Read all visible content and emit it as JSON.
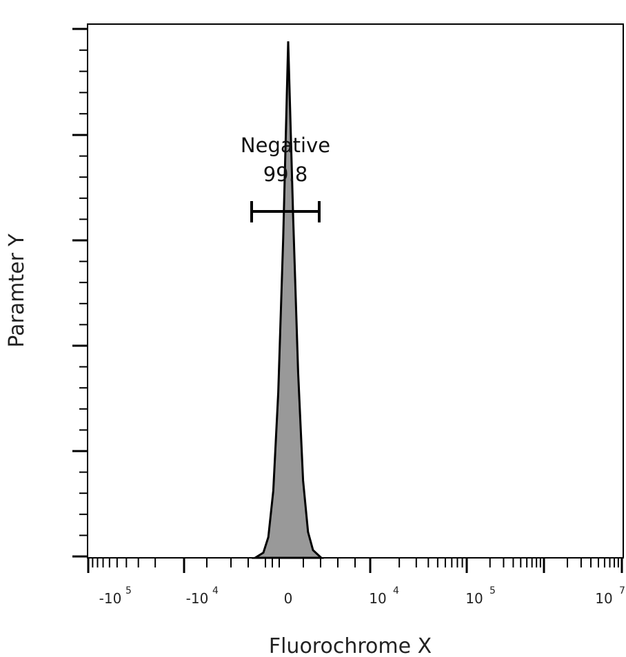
{
  "chart_data": {
    "type": "area",
    "title": "",
    "xlabel": "Fluorochrome X",
    "ylabel": "Paramter Y",
    "x_scale": "biexponential",
    "x_ticks": [
      {
        "label": "-10",
        "exp": "5"
      },
      {
        "label": "-10",
        "exp": "4"
      },
      {
        "label": "0",
        "exp": ""
      },
      {
        "label": "10",
        "exp": "4"
      },
      {
        "label": "10",
        "exp": "5"
      },
      {
        "label": "10",
        "exp": "7"
      }
    ],
    "y_tick_labels": [],
    "grid": false,
    "series": [
      {
        "fill_color": "#999999",
        "stroke_color": "#000000",
        "points": [
          [
            -1,
            0
          ],
          [
            -0.75,
            0.01
          ],
          [
            -0.6,
            0.04
          ],
          [
            -0.45,
            0.13
          ],
          [
            -0.3,
            0.32
          ],
          [
            -0.15,
            0.62
          ],
          [
            0,
            1.0
          ],
          [
            0.15,
            0.66
          ],
          [
            0.3,
            0.36
          ],
          [
            0.45,
            0.15
          ],
          [
            0.6,
            0.05
          ],
          [
            0.75,
            0.015
          ],
          [
            1,
            0
          ]
        ]
      }
    ],
    "gate": {
      "name": "Negative",
      "percent": "99.8"
    }
  }
}
